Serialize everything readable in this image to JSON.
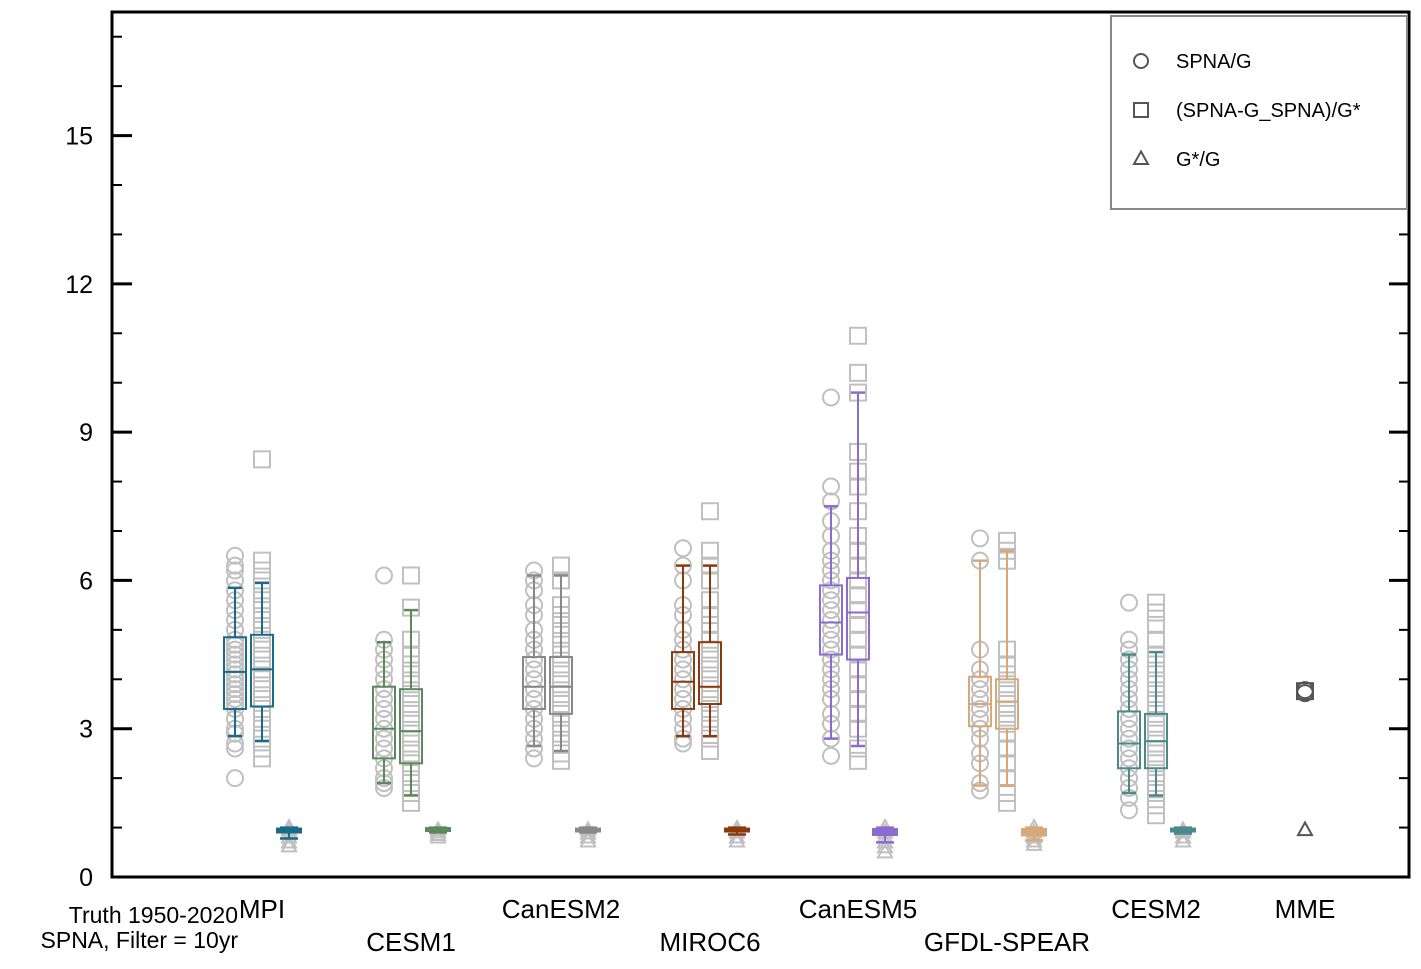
{
  "chart_data": {
    "type": "box",
    "title": "",
    "xlabel": "",
    "ylabel": "",
    "ylim": [
      0,
      17.5
    ],
    "yticks": [
      0,
      3,
      6,
      9,
      12,
      15
    ],
    "ytick_labels": [
      "0",
      "3",
      "6",
      "9",
      "12",
      "15"
    ],
    "yminor_step": 1,
    "note_lines": [
      "Truth 1950-2020",
      "SPNA, Filter = 10yr"
    ],
    "legend": {
      "position": "top-right",
      "entries": [
        {
          "label": "SPNA/G",
          "marker": "circle"
        },
        {
          "label": "(SPNA-G_SPNA)/G*",
          "marker": "square"
        },
        {
          "label": "G*/G",
          "marker": "triangle"
        }
      ]
    },
    "models": [
      {
        "name": "MPI",
        "color": "#1a6a8a",
        "label_row": 1,
        "circle": {
          "q1": 3.4,
          "median": 4.15,
          "q3": 4.85,
          "low": 2.85,
          "high": 5.85,
          "points": [
            2.0,
            2.6,
            2.7,
            2.9,
            3.0,
            3.2,
            3.4,
            3.5,
            3.6,
            3.7,
            3.8,
            3.9,
            4.0,
            4.1,
            4.2,
            4.3,
            4.4,
            4.5,
            4.6,
            4.7,
            4.8,
            5.0,
            5.2,
            5.4,
            5.6,
            5.8,
            6.0,
            6.2,
            6.3,
            6.5
          ]
        },
        "square": {
          "q1": 3.45,
          "median": 4.2,
          "q3": 4.9,
          "low": 2.75,
          "high": 5.95,
          "points": [
            2.4,
            2.6,
            2.8,
            3.0,
            3.2,
            3.4,
            3.6,
            3.8,
            4.0,
            4.2,
            4.4,
            4.6,
            4.8,
            5.0,
            5.2,
            5.4,
            5.6,
            5.8,
            6.0,
            6.2,
            6.4,
            8.45
          ]
        },
        "triangle": {
          "q1": 0.9,
          "median": 0.95,
          "q3": 0.98,
          "low": 0.78,
          "high": 1.0,
          "points": [
            0.62,
            0.7,
            0.8,
            0.9,
            0.95,
            1.0
          ]
        }
      },
      {
        "name": "CESM1",
        "color": "#5a8a5a",
        "label_row": 2,
        "circle": {
          "q1": 2.4,
          "median": 3.0,
          "q3": 3.85,
          "low": 1.9,
          "high": 4.75,
          "points": [
            1.8,
            1.9,
            2.0,
            2.2,
            2.4,
            2.6,
            2.8,
            3.0,
            3.2,
            3.4,
            3.6,
            3.8,
            4.0,
            4.2,
            4.4,
            4.6,
            4.8,
            6.1
          ]
        },
        "square": {
          "q1": 2.3,
          "median": 2.95,
          "q3": 3.8,
          "low": 1.65,
          "high": 5.4,
          "points": [
            1.5,
            1.7,
            1.9,
            2.1,
            2.3,
            2.5,
            2.7,
            2.9,
            3.1,
            3.3,
            3.5,
            3.7,
            3.9,
            4.1,
            4.3,
            4.5,
            4.8,
            5.45,
            6.1
          ]
        },
        "triangle": {
          "q1": 0.93,
          "median": 0.96,
          "q3": 0.99,
          "low": 0.9,
          "high": 1.0,
          "points": [
            0.8,
            0.85,
            0.9,
            0.95
          ]
        }
      },
      {
        "name": "CanESM2",
        "color": "#888888",
        "label_row": 1,
        "circle": {
          "q1": 3.4,
          "median": 3.85,
          "q3": 4.45,
          "low": 2.65,
          "high": 6.1,
          "points": [
            2.4,
            2.6,
            2.8,
            3.0,
            3.2,
            3.4,
            3.6,
            3.8,
            4.0,
            4.2,
            4.4,
            4.6,
            4.8,
            5.0,
            5.3,
            5.5,
            5.8,
            6.0,
            6.2
          ]
        },
        "square": {
          "q1": 3.3,
          "median": 3.85,
          "q3": 4.45,
          "low": 2.55,
          "high": 6.1,
          "points": [
            2.35,
            2.5,
            2.7,
            2.9,
            3.1,
            3.3,
            3.5,
            3.7,
            3.9,
            4.1,
            4.3,
            4.5,
            4.7,
            4.9,
            5.1,
            5.3,
            5.5,
            6.0,
            6.3
          ]
        },
        "triangle": {
          "q1": 0.92,
          "median": 0.95,
          "q3": 0.98,
          "low": 0.9,
          "high": 1.0,
          "points": [
            0.72,
            0.8,
            0.88,
            0.95
          ]
        }
      },
      {
        "name": "MIROC6",
        "color": "#8b3a0e",
        "label_row": 2,
        "circle": {
          "q1": 3.4,
          "median": 3.95,
          "q3": 4.55,
          "low": 2.85,
          "high": 6.3,
          "points": [
            2.7,
            2.8,
            3.0,
            3.2,
            3.4,
            3.6,
            3.8,
            4.0,
            4.2,
            4.4,
            4.6,
            4.8,
            5.0,
            5.3,
            5.5,
            6.0,
            6.3,
            6.65
          ]
        },
        "square": {
          "q1": 3.5,
          "median": 3.85,
          "q3": 4.75,
          "low": 2.85,
          "high": 6.3,
          "points": [
            2.55,
            2.8,
            3.0,
            3.2,
            3.4,
            3.6,
            3.8,
            4.0,
            4.2,
            4.4,
            4.6,
            4.8,
            5.1,
            5.3,
            5.6,
            6.0,
            6.3,
            6.6,
            7.4
          ]
        },
        "triangle": {
          "q1": 0.92,
          "median": 0.95,
          "q3": 0.98,
          "low": 0.86,
          "high": 1.0,
          "points": [
            0.72,
            0.8,
            0.9,
            0.98
          ]
        }
      },
      {
        "name": "CanESM5",
        "color": "#8a6cd0",
        "label_row": 1,
        "circle": {
          "q1": 4.5,
          "median": 5.15,
          "q3": 5.9,
          "low": 2.8,
          "high": 7.5,
          "points": [
            2.45,
            2.8,
            3.1,
            3.3,
            3.6,
            3.8,
            4.0,
            4.2,
            4.4,
            4.6,
            4.8,
            5.0,
            5.2,
            5.4,
            5.6,
            5.8,
            6.0,
            6.2,
            6.4,
            6.6,
            6.9,
            7.2,
            7.6,
            7.9,
            9.7
          ]
        },
        "square": {
          "q1": 4.4,
          "median": 5.35,
          "q3": 6.05,
          "low": 2.65,
          "high": 9.8,
          "points": [
            2.35,
            2.6,
            3.0,
            3.3,
            3.6,
            3.9,
            4.2,
            4.5,
            4.8,
            5.1,
            5.4,
            5.7,
            6.0,
            6.3,
            6.6,
            6.9,
            7.4,
            7.9,
            8.2,
            8.6,
            9.8,
            10.2,
            10.95
          ]
        },
        "triangle": {
          "q1": 0.85,
          "median": 0.9,
          "q3": 0.97,
          "low": 0.7,
          "high": 1.0,
          "points": [
            0.5,
            0.6,
            0.7,
            0.8,
            0.9,
            1.0
          ]
        }
      },
      {
        "name": "GFDL-SPEAR",
        "color": "#d8a878",
        "label_row": 2,
        "circle": {
          "q1": 3.05,
          "median": 3.5,
          "q3": 4.05,
          "low": 1.85,
          "high": 6.4,
          "points": [
            1.75,
            1.9,
            2.3,
            2.5,
            2.8,
            3.0,
            3.2,
            3.4,
            3.6,
            3.8,
            4.0,
            4.2,
            4.6,
            6.4,
            6.85
          ]
        },
        "square": {
          "q1": 3.0,
          "median": 3.55,
          "q3": 4.0,
          "low": 1.85,
          "high": 6.6,
          "points": [
            1.5,
            1.7,
            2.0,
            2.3,
            2.6,
            2.9,
            3.1,
            3.3,
            3.5,
            3.7,
            3.9,
            4.1,
            4.3,
            4.6,
            6.4,
            6.6,
            6.8
          ]
        },
        "triangle": {
          "q1": 0.84,
          "median": 0.9,
          "q3": 0.97,
          "low": 0.74,
          "high": 1.0,
          "points": [
            0.65,
            0.72,
            0.8,
            0.9,
            1.0
          ]
        }
      },
      {
        "name": "CESM2",
        "color": "#4a8a8a",
        "label_row": 1,
        "circle": {
          "q1": 2.2,
          "median": 2.7,
          "q3": 3.35,
          "low": 1.7,
          "high": 4.5,
          "points": [
            1.35,
            1.6,
            1.8,
            2.0,
            2.2,
            2.4,
            2.6,
            2.8,
            3.0,
            3.2,
            3.4,
            3.6,
            3.8,
            4.0,
            4.2,
            4.4,
            4.6,
            4.8,
            5.55
          ]
        },
        "square": {
          "q1": 2.2,
          "median": 2.75,
          "q3": 3.3,
          "low": 1.65,
          "high": 4.55,
          "points": [
            1.25,
            1.45,
            1.7,
            1.9,
            2.1,
            2.3,
            2.5,
            2.7,
            2.9,
            3.1,
            3.3,
            3.5,
            3.7,
            3.9,
            4.1,
            4.3,
            4.5,
            4.8,
            5.1,
            5.35,
            5.55
          ]
        },
        "triangle": {
          "q1": 0.92,
          "median": 0.95,
          "q3": 0.98,
          "low": 0.88,
          "high": 1.0,
          "points": [
            0.72,
            0.8,
            0.9,
            0.95
          ]
        }
      },
      {
        "name": "MME",
        "color": "#333333",
        "label_row": 1,
        "circle": {
          "points": [
            3.72,
            3.78
          ]
        },
        "square": {
          "points": [
            3.76
          ]
        },
        "triangle": {
          "points": [
            0.95
          ]
        }
      }
    ]
  }
}
